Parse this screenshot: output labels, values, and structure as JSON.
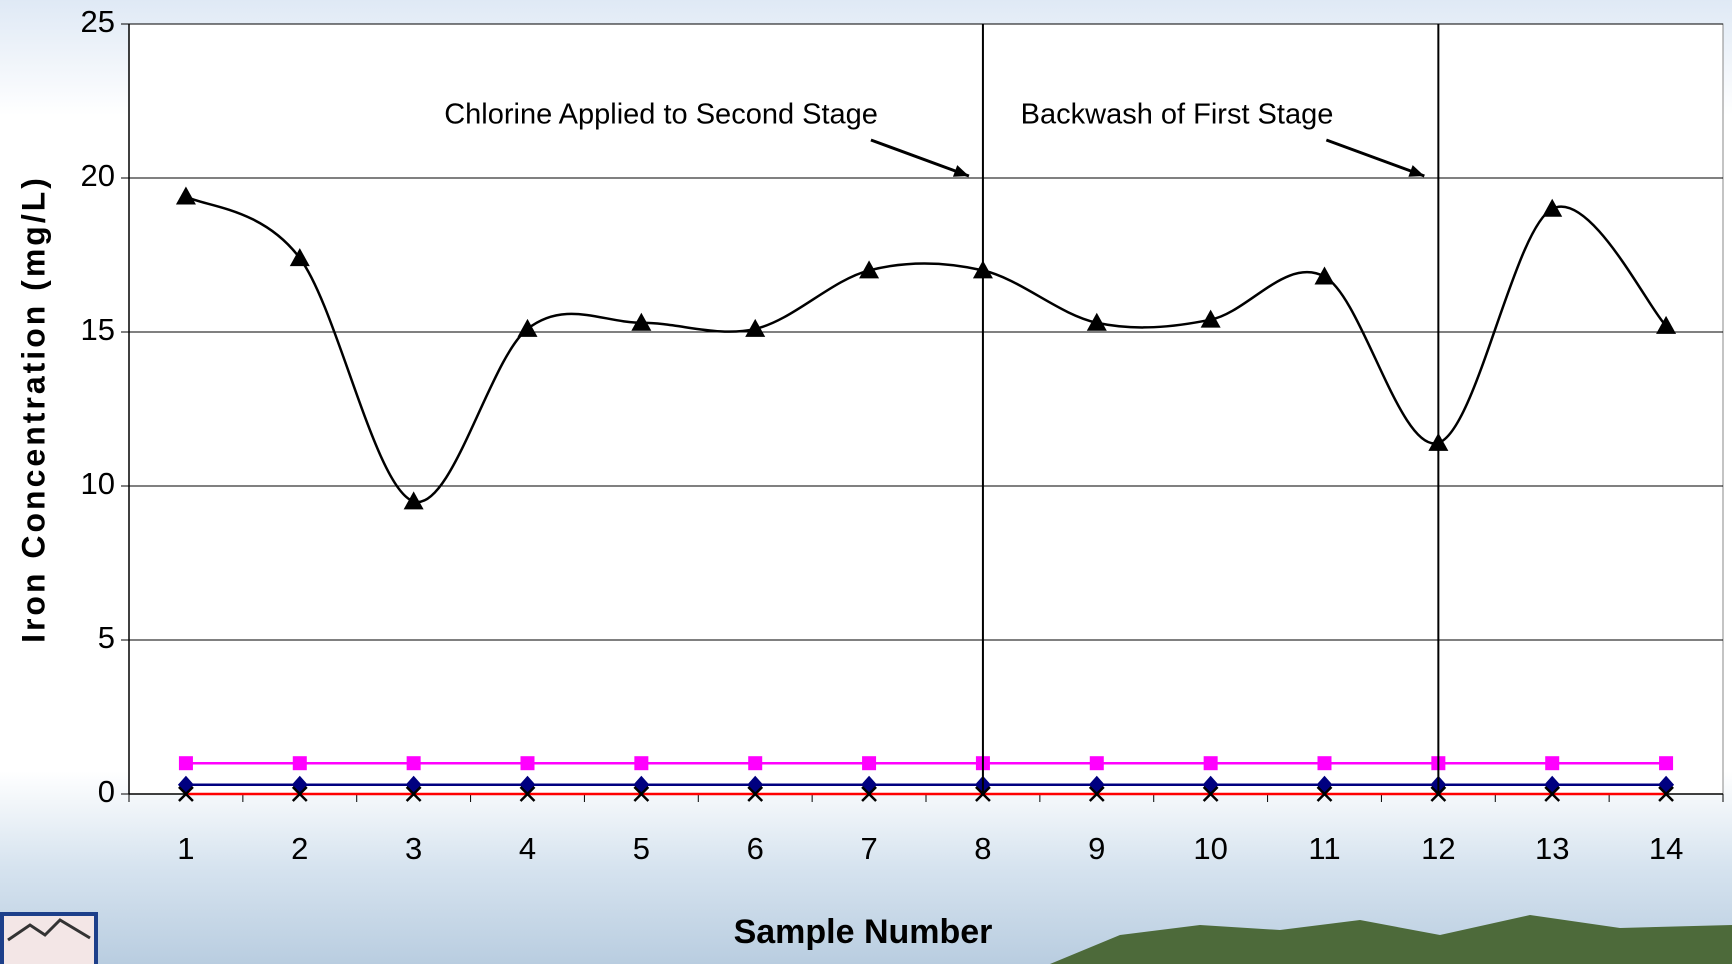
{
  "chart_data": {
    "type": "line",
    "x_label": "Sample Number",
    "y_label": "Iron Concentration (mg/L)",
    "categories": [
      1,
      2,
      3,
      4,
      5,
      6,
      7,
      8,
      9,
      10,
      11,
      12,
      13,
      14
    ],
    "series": [
      {
        "color": "#000000",
        "marker": "triangle",
        "marker_color": "#000000",
        "smooth": true,
        "values": [
          19.4,
          17.4,
          9.5,
          15.1,
          15.3,
          15.1,
          17.0,
          17.0,
          15.3,
          15.4,
          16.8,
          11.4,
          19.0,
          15.2
        ]
      },
      {
        "color": "#ff00ff",
        "marker": "square",
        "marker_color": "#ff00ff",
        "smooth": false,
        "values": [
          1,
          1,
          1,
          1,
          1,
          1,
          1,
          1,
          1,
          1,
          1,
          1,
          1,
          1
        ]
      },
      {
        "color": "#000080",
        "marker": "diamond",
        "marker_color": "#000080",
        "smooth": false,
        "values": [
          0.3,
          0.3,
          0.3,
          0.3,
          0.3,
          0.3,
          0.3,
          0.3,
          0.3,
          0.3,
          0.3,
          0.3,
          0.3,
          0.3
        ]
      },
      {
        "color": "#ff0000",
        "marker": "x",
        "marker_color": "#000000",
        "smooth": false,
        "values": [
          0,
          0,
          0,
          0,
          0,
          0,
          0,
          0,
          0,
          0,
          0,
          0,
          0,
          0
        ]
      }
    ],
    "annotations": [
      {
        "text": "Chlorine Applied to Second Stage",
        "x": 8
      },
      {
        "text": "Backwash of First Stage",
        "x": 12
      }
    ],
    "ylim": [
      0,
      25
    ],
    "yticks": [
      0,
      5,
      10,
      15,
      20,
      25
    ],
    "grid": true
  }
}
